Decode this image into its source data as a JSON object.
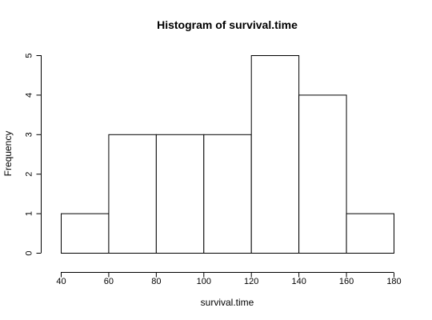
{
  "chart_data": {
    "type": "bar",
    "title": "Histogram of survival.time",
    "xlabel": "survival.time",
    "ylabel": "Frequency",
    "bins": [
      {
        "from": 40,
        "to": 60,
        "count": 1
      },
      {
        "from": 60,
        "to": 80,
        "count": 3
      },
      {
        "from": 80,
        "to": 100,
        "count": 3
      },
      {
        "from": 100,
        "to": 120,
        "count": 3
      },
      {
        "from": 120,
        "to": 140,
        "count": 5
      },
      {
        "from": 140,
        "to": 160,
        "count": 4
      },
      {
        "from": 160,
        "to": 180,
        "count": 1
      }
    ],
    "xticks": [
      40,
      60,
      80,
      100,
      120,
      140,
      160,
      180
    ],
    "yticks": [
      0,
      1,
      2,
      3,
      4,
      5
    ],
    "xlim": [
      40,
      180
    ],
    "ylim": [
      0,
      5
    ],
    "grid": false,
    "legend": "none"
  }
}
